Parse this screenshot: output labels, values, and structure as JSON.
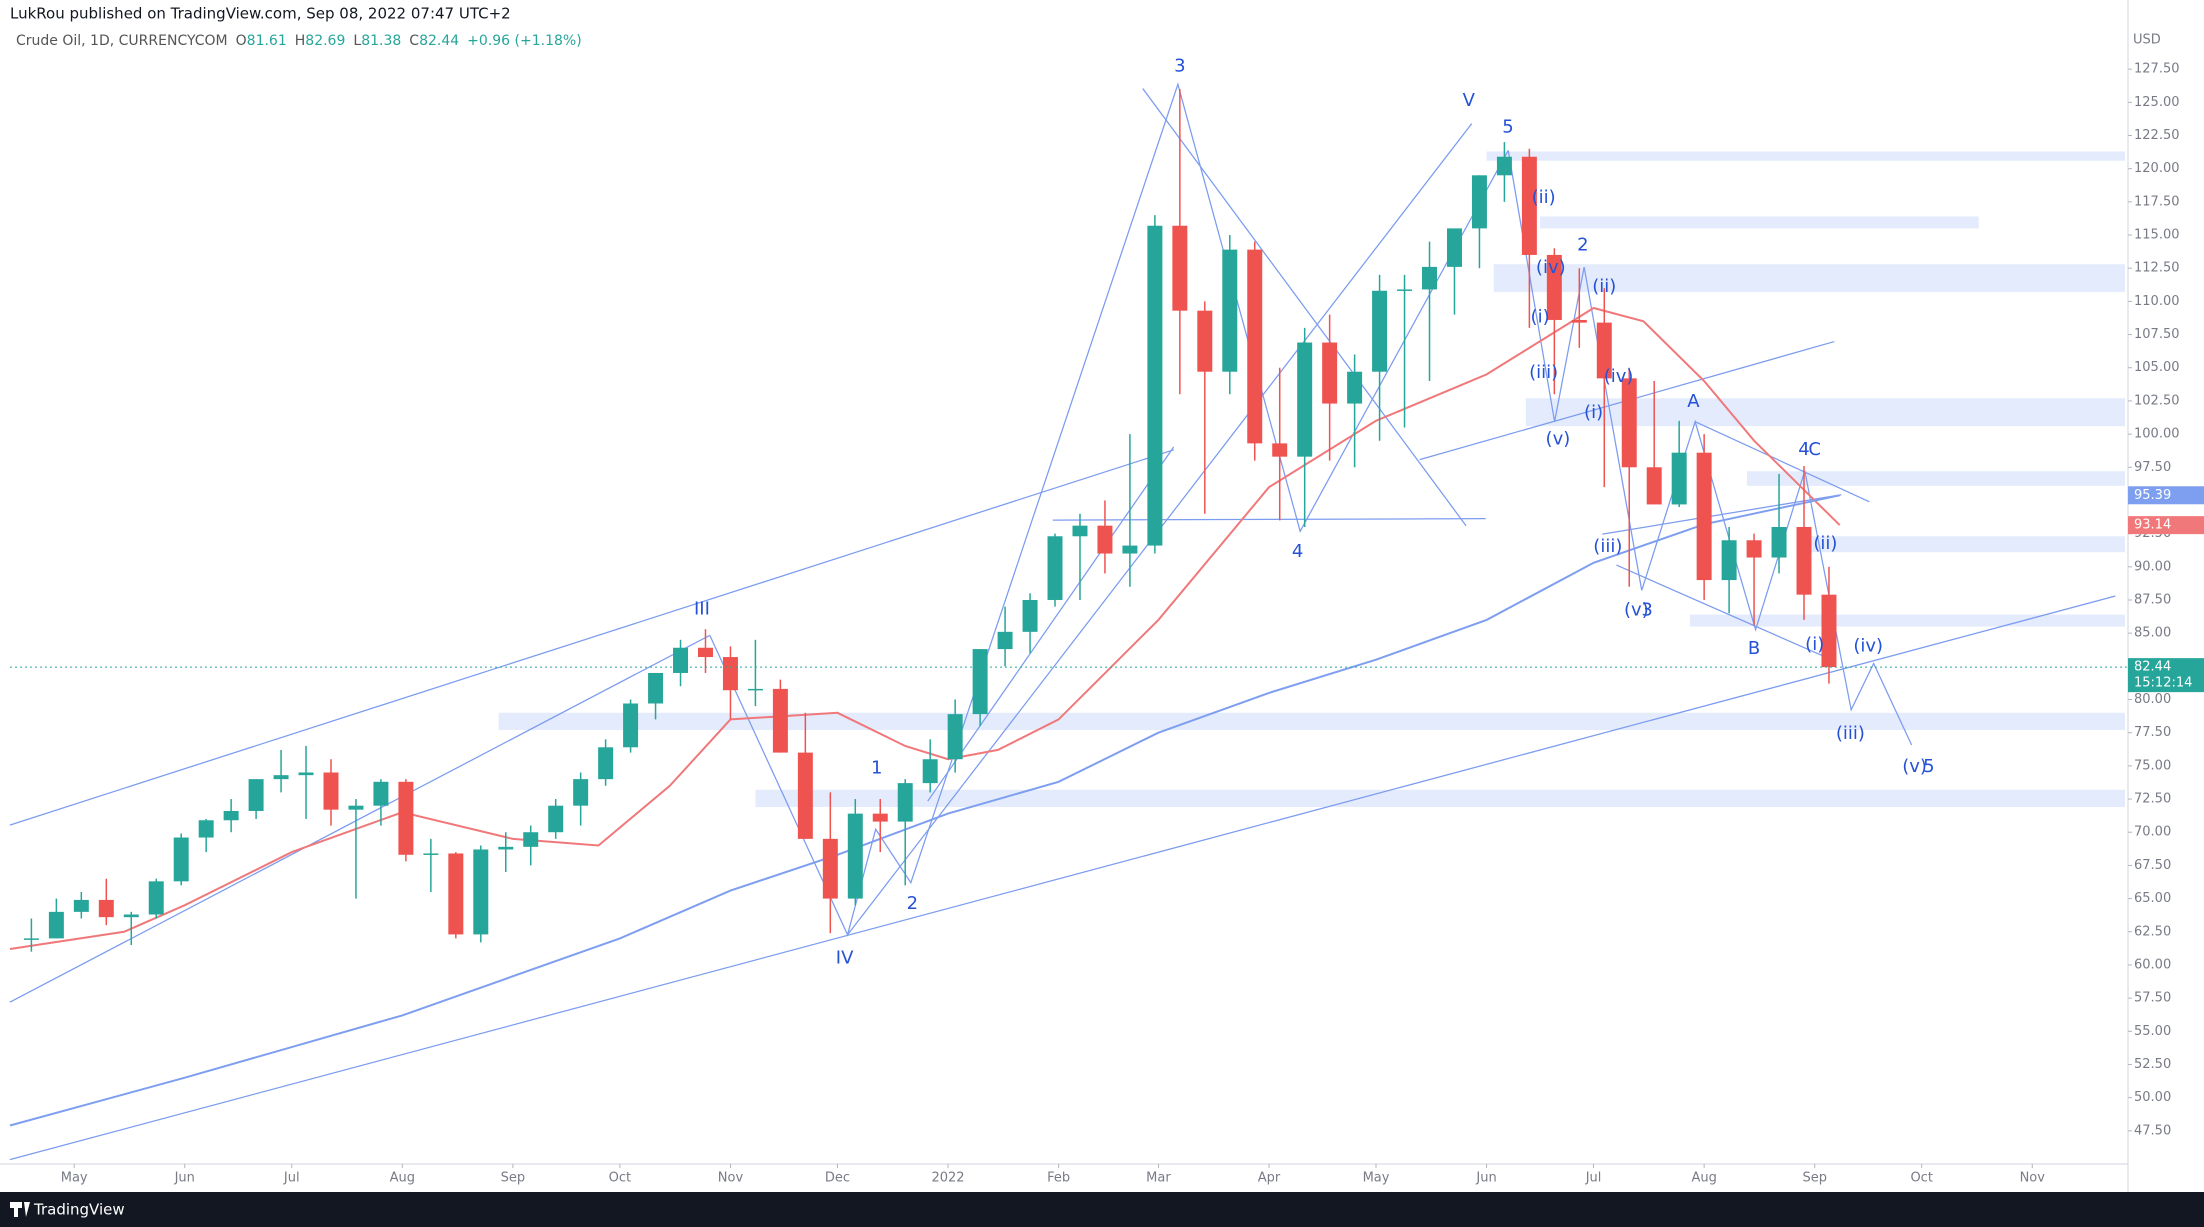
{
  "header": {
    "publisher": "LukRou published on TradingView.com, Sep 08, 2022 07:47 UTC+2",
    "footer": "TradingView"
  },
  "chart_data": {
    "type": "candlestick",
    "title": "Crude Oil, 1D, CURRENCYCOM",
    "ohlc_legend": [
      {
        "key": "O",
        "value": "81.61"
      },
      {
        "key": "H",
        "value": "82.69"
      },
      {
        "key": "L",
        "value": "81.38"
      },
      {
        "key": "C",
        "value": "82.44"
      }
    ],
    "change": "+0.96 (+1.18%)",
    "currency": "USD",
    "countdown": "15:12:14",
    "up_color": "#26a69a",
    "down_color": "#ef5350",
    "xlim": [
      "2021-04-13",
      "2022-11-27"
    ],
    "xticks": [
      {
        "value": "2021-05-01",
        "label": "May"
      },
      {
        "value": "2021-06-01",
        "label": "Jun"
      },
      {
        "value": "2021-07-01",
        "label": "Jul"
      },
      {
        "value": "2021-08-01",
        "label": "Aug"
      },
      {
        "value": "2021-09-01",
        "label": "Sep"
      },
      {
        "value": "2021-10-01",
        "label": "Oct"
      },
      {
        "value": "2021-11-01",
        "label": "Nov"
      },
      {
        "value": "2021-12-01",
        "label": "Dec"
      },
      {
        "value": "2022-01-01",
        "label": "2022"
      },
      {
        "value": "2022-02-01",
        "label": "Feb"
      },
      {
        "value": "2022-03-01",
        "label": "Mar"
      },
      {
        "value": "2022-04-01",
        "label": "Apr"
      },
      {
        "value": "2022-05-01",
        "label": "May"
      },
      {
        "value": "2022-06-01",
        "label": "Jun"
      },
      {
        "value": "2022-07-01",
        "label": "Jul"
      },
      {
        "value": "2022-08-01",
        "label": "Aug"
      },
      {
        "value": "2022-09-01",
        "label": "Sep"
      },
      {
        "value": "2022-10-01",
        "label": "Oct"
      },
      {
        "value": "2022-11-01",
        "label": "Nov"
      }
    ],
    "ylim": [
      45.0,
      130.6
    ],
    "yticks": [
      {
        "value": 47.5,
        "label": "47.50"
      },
      {
        "value": 50,
        "label": "50.00"
      },
      {
        "value": 52.5,
        "label": "52.50"
      },
      {
        "value": 55,
        "label": "55.00"
      },
      {
        "value": 57.5,
        "label": "57.50"
      },
      {
        "value": 60,
        "label": "60.00"
      },
      {
        "value": 62.5,
        "label": "62.50"
      },
      {
        "value": 65,
        "label": "65.00"
      },
      {
        "value": 67.5,
        "label": "67.50"
      },
      {
        "value": 70,
        "label": "70.00"
      },
      {
        "value": 72.5,
        "label": "72.50"
      },
      {
        "value": 75,
        "label": "75.00"
      },
      {
        "value": 77.5,
        "label": "77.50"
      },
      {
        "value": 80,
        "label": "80.00"
      },
      {
        "value": 82.5,
        "label": "82.50"
      },
      {
        "value": 85,
        "label": "85.00"
      },
      {
        "value": 87.5,
        "label": "87.50"
      },
      {
        "value": 90,
        "label": "90.00"
      },
      {
        "value": 92.5,
        "label": "92.50"
      },
      {
        "value": 95,
        "label": "95.00"
      },
      {
        "value": 97.5,
        "label": "97.50"
      },
      {
        "value": 100,
        "label": "100.00"
      },
      {
        "value": 102.5,
        "label": "102.50"
      },
      {
        "value": 105,
        "label": "105.00"
      },
      {
        "value": 107.5,
        "label": "107.50"
      },
      {
        "value": 110,
        "label": "110.00"
      },
      {
        "value": 112.5,
        "label": "112.50"
      },
      {
        "value": 115,
        "label": "115.00"
      },
      {
        "value": 117.5,
        "label": "117.50"
      },
      {
        "value": 120,
        "label": "120.00"
      },
      {
        "value": 122.5,
        "label": "122.50"
      },
      {
        "value": 125,
        "label": "125.00"
      },
      {
        "value": 127.5,
        "label": "127.50"
      }
    ],
    "x": [
      "2021-04-19",
      "2021-04-26",
      "2021-05-03",
      "2021-05-10",
      "2021-05-17",
      "2021-05-24",
      "2021-05-31",
      "2021-06-07",
      "2021-06-14",
      "2021-06-21",
      "2021-06-28",
      "2021-07-05",
      "2021-07-12",
      "2021-07-19",
      "2021-07-26",
      "2021-08-02",
      "2021-08-09",
      "2021-08-16",
      "2021-08-23",
      "2021-08-30",
      "2021-09-06",
      "2021-09-13",
      "2021-09-20",
      "2021-09-27",
      "2021-10-04",
      "2021-10-11",
      "2021-10-18",
      "2021-10-25",
      "2021-11-01",
      "2021-11-08",
      "2021-11-15",
      "2021-11-22",
      "2021-11-29",
      "2021-12-06",
      "2021-12-13",
      "2021-12-20",
      "2021-12-27",
      "2022-01-03",
      "2022-01-10",
      "2022-01-17",
      "2022-01-24",
      "2022-01-31",
      "2022-02-07",
      "2022-02-14",
      "2022-02-21",
      "2022-02-28",
      "2022-03-07",
      "2022-03-14",
      "2022-03-21",
      "2022-03-28",
      "2022-04-04",
      "2022-04-11",
      "2022-04-18",
      "2022-04-25",
      "2022-05-02",
      "2022-05-09",
      "2022-05-16",
      "2022-05-23",
      "2022-05-30",
      "2022-06-06",
      "2022-06-13",
      "2022-06-20",
      "2022-06-27",
      "2022-07-04",
      "2022-07-11",
      "2022-07-18",
      "2022-07-25",
      "2022-08-01",
      "2022-08-08",
      "2022-08-15",
      "2022-08-22",
      "2022-08-29",
      "2022-09-05"
    ],
    "open": [
      62,
      62,
      64,
      64.9,
      63.6,
      63.8,
      66.3,
      69.6,
      70.9,
      71.6,
      74,
      74.3,
      74.5,
      71.7,
      72,
      73.8,
      68.3,
      68.4,
      62.3,
      68.7,
      68.9,
      70,
      72,
      74,
      76.4,
      79.7,
      82,
      83.9,
      83.2,
      80.7,
      80.8,
      76,
      69.5,
      65,
      71.4,
      70.8,
      73.7,
      75.5,
      78.9,
      83.8,
      85.1,
      87.5,
      92.3,
      93.1,
      91,
      91.6,
      115.7,
      109.3,
      104.7,
      113.9,
      99.3,
      98.3,
      106.9,
      102.3,
      104.7,
      110.8,
      110.9,
      112.6,
      115.5,
      119.5,
      120.9,
      113.5,
      108.6,
      108.4,
      104.2,
      97.5,
      94.7,
      98.6,
      89,
      92,
      90.7,
      93,
      87.9
    ],
    "high": [
      63.5,
      65,
      65.5,
      66.5,
      64,
      66.5,
      69.9,
      71,
      72.5,
      74,
      76.2,
      76.5,
      75.5,
      72.5,
      74,
      74,
      69.5,
      68.5,
      69,
      70,
      70.5,
      72.5,
      74.5,
      77,
      80,
      82,
      84.5,
      85.3,
      84,
      84.5,
      81.5,
      79,
      73,
      72.5,
      72.5,
      74,
      77,
      80,
      83.8,
      87,
      88,
      92.5,
      94,
      95,
      100,
      116.5,
      126,
      110,
      115,
      114.5,
      105,
      108,
      109,
      106,
      112,
      112,
      114.5,
      115,
      119.5,
      122,
      121.5,
      114,
      112.5,
      111,
      105,
      104,
      101,
      100,
      93,
      92.5,
      97,
      97.6,
      90
    ],
    "low": [
      61,
      62,
      63.5,
      63,
      61.5,
      63.5,
      66,
      68.5,
      70,
      71,
      73,
      71,
      70.5,
      65,
      70.5,
      67.8,
      65.5,
      62,
      61.7,
      67,
      67.5,
      69.5,
      70.5,
      73.5,
      76,
      78.5,
      81,
      82,
      78.5,
      79.5,
      76,
      69.5,
      62.4,
      64.5,
      68.5,
      66,
      73,
      74.5,
      78,
      82.5,
      83.5,
      87,
      87.5,
      89.5,
      88.5,
      91,
      103,
      94,
      103,
      98,
      93.5,
      93,
      98,
      97.5,
      99.5,
      100.5,
      104,
      109,
      112.5,
      117.5,
      108,
      103,
      106.5,
      96,
      88.5,
      95,
      94.5,
      87.5,
      86.5,
      85.6,
      89.5,
      86,
      81.2
    ],
    "close": [
      62,
      64,
      64.9,
      63.6,
      63.8,
      66.3,
      69.6,
      70.9,
      71.6,
      74,
      74.3,
      74.5,
      71.7,
      72,
      73.8,
      68.3,
      68.4,
      62.3,
      68.7,
      68.9,
      70,
      72,
      74,
      76.4,
      79.7,
      82,
      83.9,
      83.2,
      80.7,
      80.8,
      76,
      69.5,
      65,
      71.4,
      70.8,
      73.7,
      75.5,
      78.9,
      83.8,
      85.1,
      87.5,
      92.3,
      93.1,
      91,
      91.6,
      115.7,
      109.3,
      104.7,
      113.9,
      99.3,
      98.3,
      106.9,
      102.3,
      104.7,
      110.8,
      110.9,
      112.6,
      115.5,
      119.5,
      120.9,
      113.5,
      108.6,
      108.4,
      104.2,
      97.5,
      94.7,
      98.6,
      89,
      92,
      90.7,
      93,
      87.9,
      82.44
    ],
    "series": [
      {
        "color": "#f0787a",
        "x": [
          "2021-04-13",
          "2021-05-15",
          "2021-06-01",
          "2021-07-01",
          "2021-08-01",
          "2021-09-01",
          "2021-09-25",
          "2021-10-15",
          "2021-11-01",
          "2021-12-01",
          "2021-12-20",
          "2022-01-01",
          "2022-01-15",
          "2022-02-01",
          "2022-03-01",
          "2022-04-01",
          "2022-05-01",
          "2022-06-01",
          "2022-07-01",
          "2022-07-15",
          "2022-08-01",
          "2022-08-15",
          "2022-09-08"
        ],
        "values": [
          61.2,
          62.5,
          64.5,
          68.5,
          71.5,
          69.5,
          69,
          73.5,
          78.5,
          79,
          76.5,
          75.5,
          76.2,
          78.5,
          86,
          96,
          101,
          104.5,
          109.5,
          108.5,
          104,
          99.5,
          93.14
        ]
      },
      {
        "color": "#7e9ef0",
        "x": [
          "2021-04-13",
          "2021-06-01",
          "2021-08-01",
          "2021-10-01",
          "2021-11-01",
          "2021-12-01",
          "2022-01-01",
          "2022-02-01",
          "2022-03-01",
          "2022-04-01",
          "2022-05-01",
          "2022-06-01",
          "2022-07-01",
          "2022-08-01",
          "2022-09-08"
        ],
        "values": [
          47.9,
          51.5,
          56.2,
          62,
          65.6,
          68.3,
          71.4,
          73.8,
          77.5,
          80.5,
          83,
          86,
          90.3,
          93.2,
          95.39
        ]
      }
    ],
    "zone_color": "#e3ebfc",
    "zones": [
      {
        "x0": "2022-06-01",
        "low": 120.6,
        "high": 121.3
      },
      {
        "x0": "2022-06-16",
        "x1": "2022-10-17",
        "low": 115.5,
        "high": 116.4
      },
      {
        "x0": "2022-06-03",
        "low": 110.7,
        "high": 112.8
      },
      {
        "x0": "2022-06-12",
        "low": 100.6,
        "high": 102.7
      },
      {
        "x0": "2022-08-13",
        "low": 96.1,
        "high": 97.2
      },
      {
        "x0": "2022-08-31",
        "low": 91.1,
        "high": 92.3
      },
      {
        "x0": "2022-07-28",
        "low": 85.5,
        "high": 86.4
      },
      {
        "x0": "2021-08-28",
        "low": 77.7,
        "high": 79
      },
      {
        "x0": "2021-11-08",
        "low": 71.9,
        "high": 73.2
      }
    ],
    "label_color": "#2451d6",
    "wave_labels": [
      {
        "text": "III",
        "x": "2021-10-24",
        "y": 86.8
      },
      {
        "text": "IV",
        "x": "2021-12-03",
        "y": 60.5
      },
      {
        "text": "1",
        "x": "2021-12-12",
        "y": 74.8
      },
      {
        "text": "2",
        "x": "2021-12-22",
        "y": 64.6
      },
      {
        "text": "3",
        "x": "2022-03-07",
        "y": 127.7
      },
      {
        "text": "4",
        "x": "2022-04-09",
        "y": 91.1
      },
      {
        "text": "V",
        "x": "2022-05-27",
        "y": 125.1
      },
      {
        "text": "5",
        "x": "2022-06-07",
        "y": 123.1
      },
      {
        "text": "(ii)",
        "x": "2022-06-17",
        "y": 117.8
      },
      {
        "text": "(iv)",
        "x": "2022-06-19",
        "y": 112.5
      },
      {
        "text": "(i)",
        "x": "2022-06-16",
        "y": 108.8
      },
      {
        "text": "(iii)",
        "x": "2022-06-17",
        "y": 104.6
      },
      {
        "text": "(v)",
        "x": "2022-06-21",
        "y": 99.6
      },
      {
        "text": "2",
        "x": "2022-06-28",
        "y": 114.2
      },
      {
        "text": "(ii)",
        "x": "2022-07-04",
        "y": 111.1
      },
      {
        "text": "(i)",
        "x": "2022-07-01",
        "y": 101.6
      },
      {
        "text": "(iv)",
        "x": "2022-07-08",
        "y": 104.3
      },
      {
        "text": "(iii)",
        "x": "2022-07-05",
        "y": 91.5
      },
      {
        "text": "(v)",
        "x": "2022-07-13",
        "y": 86.7
      },
      {
        "text": "3",
        "x": "2022-07-16",
        "y": 86.7
      },
      {
        "text": "A",
        "x": "2022-07-29",
        "y": 102.4
      },
      {
        "text": "B",
        "x": "2022-08-15",
        "y": 83.8
      },
      {
        "text": "4",
        "x": "2022-08-29",
        "y": 98.8
      },
      {
        "text": "C",
        "x": "2022-09-01",
        "y": 98.8
      },
      {
        "text": "(ii)",
        "x": "2022-09-04",
        "y": 91.7
      },
      {
        "text": "(i)",
        "x": "2022-09-01",
        "y": 84.1
      },
      {
        "text": "(iv)",
        "x": "2022-09-16",
        "y": 84
      },
      {
        "text": "(iii)",
        "x": "2022-09-11",
        "y": 77.4
      },
      {
        "text": "(v)",
        "x": "2022-09-29",
        "y": 74.9
      },
      {
        "text": "5",
        "x": "2022-10-03",
        "y": 74.9
      }
    ]
  }
}
